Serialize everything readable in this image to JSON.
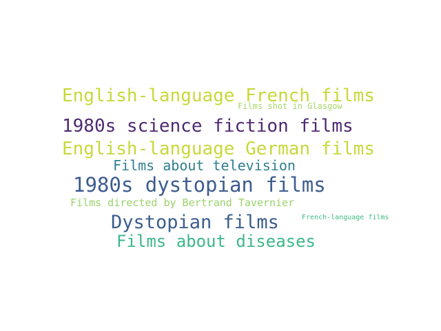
{
  "word_cloud": {
    "words": [
      {
        "text": "English-language French films",
        "color": "#c8d83a"
      },
      {
        "text": "Films shot in Glasgow",
        "color": "#a9d66a"
      },
      {
        "text": "1980s science fiction films",
        "color": "#4e2a73"
      },
      {
        "text": "English-language German films",
        "color": "#c8d83a"
      },
      {
        "text": "Films about television",
        "color": "#2f7f91"
      },
      {
        "text": "1980s dystopian films",
        "color": "#3d5c8f"
      },
      {
        "text": "Films directed by Bertrand Tavernier",
        "color": "#9ad26a"
      },
      {
        "text": "Dystopian films",
        "color": "#3b5e8c"
      },
      {
        "text": "French-language films",
        "color": "#3dbb80"
      },
      {
        "text": "Films about diseases",
        "color": "#3db78a"
      }
    ]
  }
}
